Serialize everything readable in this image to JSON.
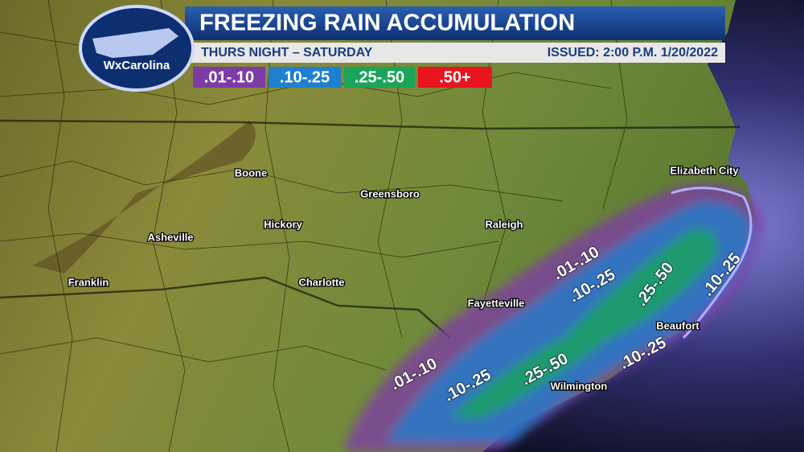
{
  "header": {
    "title": "FREEZING RAIN ACCUMULATION",
    "period": "THURS NIGHT – SATURDAY",
    "issued": "ISSUED: 2:00 P.M. 1/20/2022"
  },
  "logo": "WxCarolina",
  "legend": [
    {
      "label": ".01-.10",
      "color": "#7d3ba8"
    },
    {
      "label": ".10-.25",
      "color": "#1f7fd0"
    },
    {
      "label": ".25-.50",
      "color": "#1aa55a"
    },
    {
      "label": ".50+",
      "color": "#e8141e"
    }
  ],
  "cities": [
    "Boone",
    "Greensboro",
    "Hickory",
    "Asheville",
    "Raleigh",
    "Franklin",
    "Charlotte",
    "Fayetteville",
    "Elizabeth City",
    "Beaufort",
    "Wilmington"
  ],
  "zone_labels": [
    ".01-.10",
    ".10-.25",
    ".25-.50",
    ".10-.25",
    ".01-.10",
    ".10-.25",
    ".25-.50",
    ".10-.25"
  ]
}
